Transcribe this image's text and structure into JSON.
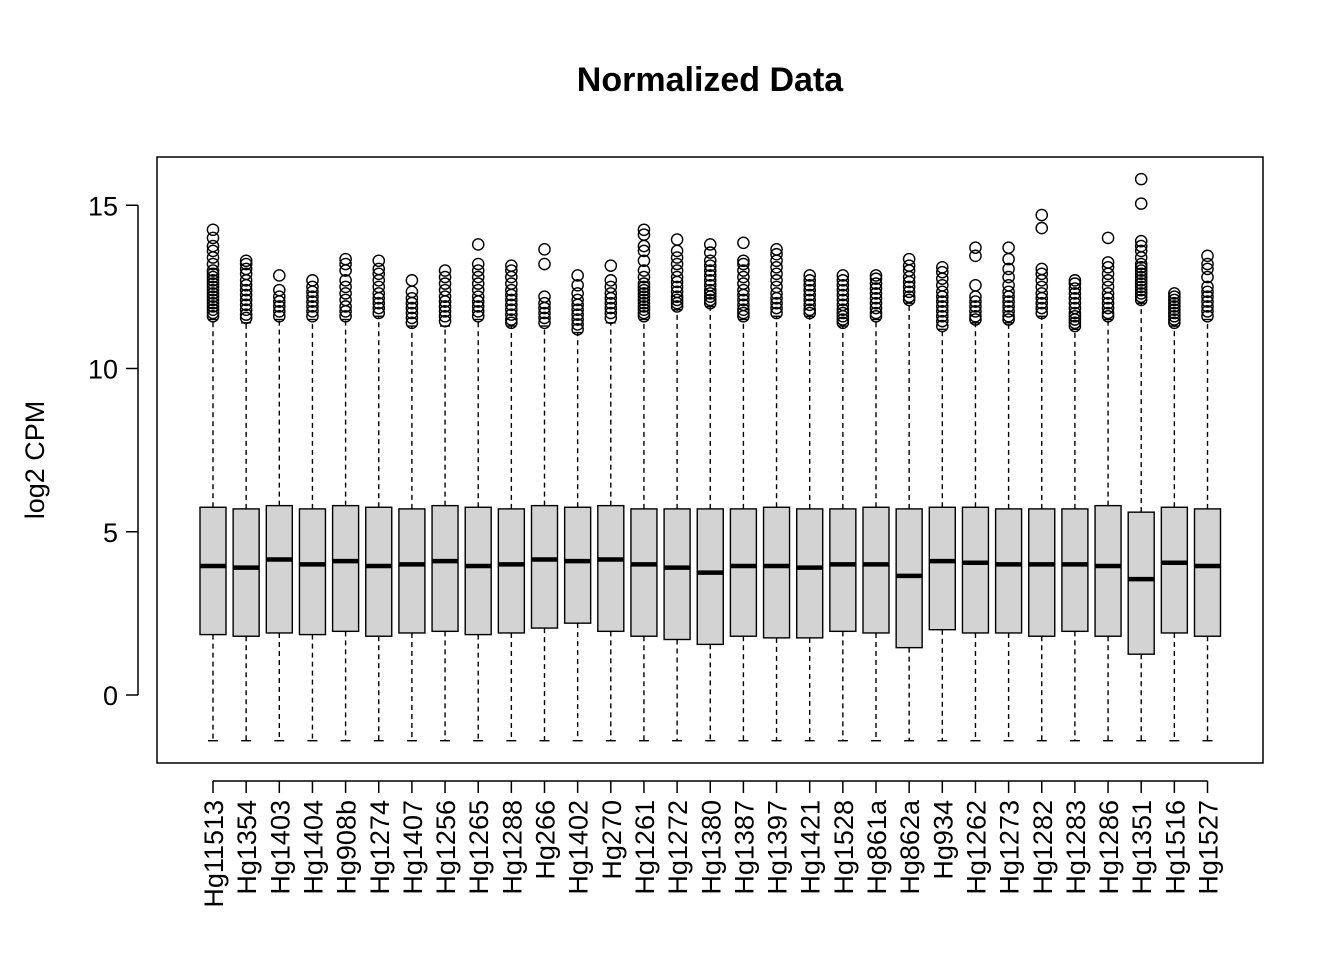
{
  "chart_data": {
    "type": "boxplot",
    "title": "Normalized Data",
    "xlabel": "",
    "ylabel": "log2 CPM",
    "ylim": [
      -2.0,
      16.5
    ],
    "yticks": [
      0,
      5,
      10,
      15
    ],
    "box_fill": "#d3d3d3",
    "line_color": "#000000",
    "background": "#ffffff",
    "grid": false,
    "legend": "none",
    "categories": [
      "Hg11513",
      "Hg1354",
      "Hg1403",
      "Hg1404",
      "Hg908b",
      "Hg1274",
      "Hg1407",
      "Hg1256",
      "Hg1265",
      "Hg1288",
      "Hg266",
      "Hg1402",
      "Hg270",
      "Hg1261",
      "Hg1272",
      "Hg1380",
      "Hg1387",
      "Hg1397",
      "Hg1421",
      "Hg1528",
      "Hg861a",
      "Hg862a",
      "Hg934",
      "Hg1262",
      "Hg1273",
      "Hg1282",
      "Hg1283",
      "Hg1286",
      "Hg1351",
      "Hg1516",
      "Hg1527"
    ],
    "boxes": [
      {
        "min": -1.4,
        "q1": 1.85,
        "median": 3.95,
        "q3": 5.75,
        "max": 11.5,
        "outliers": [
          11.6,
          11.7,
          11.8,
          11.9,
          12.0,
          12.1,
          12.2,
          12.3,
          12.4,
          12.5,
          12.6,
          12.7,
          12.8,
          12.9,
          13.0,
          13.2,
          13.4,
          13.6,
          13.75,
          14.0,
          14.25
        ]
      },
      {
        "min": -1.4,
        "q1": 1.8,
        "median": 3.9,
        "q3": 5.7,
        "max": 11.4,
        "outliers": [
          11.55,
          11.65,
          11.8,
          11.95,
          12.1,
          12.25,
          12.4,
          12.55,
          12.7,
          12.9,
          13.05,
          13.2,
          13.3
        ]
      },
      {
        "min": -1.4,
        "q1": 1.9,
        "median": 4.15,
        "q3": 5.8,
        "max": 11.5,
        "outliers": [
          11.6,
          11.75,
          11.9,
          12.05,
          12.2,
          12.4,
          12.85
        ]
      },
      {
        "min": -1.4,
        "q1": 1.85,
        "median": 4.0,
        "q3": 5.7,
        "max": 11.5,
        "outliers": [
          11.6,
          11.75,
          11.9,
          12.05,
          12.2,
          12.35,
          12.5,
          12.7
        ]
      },
      {
        "min": -1.4,
        "q1": 1.95,
        "median": 4.1,
        "q3": 5.8,
        "max": 11.5,
        "outliers": [
          11.6,
          11.75,
          11.9,
          12.1,
          12.3,
          12.5,
          12.7,
          13.0,
          13.2,
          13.35
        ]
      },
      {
        "min": -1.4,
        "q1": 1.8,
        "median": 3.95,
        "q3": 5.75,
        "max": 11.6,
        "outliers": [
          11.7,
          11.85,
          12.0,
          12.15,
          12.3,
          12.5,
          12.7,
          12.9,
          13.05,
          13.3
        ]
      },
      {
        "min": -1.4,
        "q1": 1.9,
        "median": 4.0,
        "q3": 5.7,
        "max": 11.3,
        "outliers": [
          11.4,
          11.55,
          11.7,
          11.85,
          12.0,
          12.15,
          12.35,
          12.7
        ]
      },
      {
        "min": -1.4,
        "q1": 1.95,
        "median": 4.1,
        "q3": 5.8,
        "max": 11.3,
        "outliers": [
          11.45,
          11.6,
          11.75,
          11.9,
          12.05,
          12.2,
          12.4,
          12.6,
          12.8,
          13.0
        ]
      },
      {
        "min": -1.4,
        "q1": 1.85,
        "median": 3.95,
        "q3": 5.75,
        "max": 11.5,
        "outliers": [
          11.6,
          11.75,
          11.9,
          12.05,
          12.2,
          12.4,
          12.6,
          12.8,
          13.0,
          13.2,
          13.8
        ]
      },
      {
        "min": -1.4,
        "q1": 1.9,
        "median": 4.0,
        "q3": 5.7,
        "max": 11.3,
        "outliers": [
          11.4,
          11.5,
          11.65,
          11.8,
          11.95,
          12.1,
          12.25,
          12.4,
          12.6,
          12.8,
          13.0,
          13.15
        ]
      },
      {
        "min": -1.4,
        "q1": 2.05,
        "median": 4.15,
        "q3": 5.8,
        "max": 11.3,
        "outliers": [
          11.4,
          11.55,
          11.7,
          11.85,
          12.0,
          12.2,
          13.2,
          13.65
        ]
      },
      {
        "min": -1.4,
        "q1": 2.2,
        "median": 4.1,
        "q3": 5.75,
        "max": 11.1,
        "outliers": [
          11.2,
          11.35,
          11.5,
          11.65,
          11.8,
          11.95,
          12.1,
          12.3,
          12.55,
          12.85
        ]
      },
      {
        "min": -1.4,
        "q1": 1.95,
        "median": 4.15,
        "q3": 5.8,
        "max": 11.4,
        "outliers": [
          11.55,
          11.7,
          11.85,
          12.0,
          12.15,
          12.3,
          12.5,
          12.7,
          13.15
        ]
      },
      {
        "min": -1.4,
        "q1": 1.8,
        "median": 4.0,
        "q3": 5.7,
        "max": 11.5,
        "outliers": [
          11.6,
          11.7,
          11.8,
          11.9,
          12.0,
          12.1,
          12.2,
          12.3,
          12.4,
          12.5,
          12.6,
          12.8,
          13.0,
          13.3,
          13.6,
          13.75,
          14.1,
          14.25
        ]
      },
      {
        "min": -1.4,
        "q1": 1.7,
        "median": 3.9,
        "q3": 5.7,
        "max": 11.8,
        "outliers": [
          11.9,
          12.0,
          12.1,
          12.2,
          12.35,
          12.5,
          12.65,
          12.8,
          13.0,
          13.2,
          13.4,
          13.6,
          13.95
        ]
      },
      {
        "min": -1.4,
        "q1": 1.55,
        "median": 3.75,
        "q3": 5.7,
        "max": 11.9,
        "outliers": [
          12.0,
          12.1,
          12.2,
          12.3,
          12.4,
          12.55,
          12.7,
          12.85,
          13.0,
          13.15,
          13.3,
          13.55,
          13.8
        ]
      },
      {
        "min": -1.4,
        "q1": 1.8,
        "median": 3.95,
        "q3": 5.7,
        "max": 11.5,
        "outliers": [
          11.6,
          11.7,
          11.8,
          11.95,
          12.1,
          12.25,
          12.4,
          12.6,
          12.8,
          13.0,
          13.2,
          13.3,
          13.85
        ]
      },
      {
        "min": -1.4,
        "q1": 1.75,
        "median": 3.95,
        "q3": 5.75,
        "max": 11.6,
        "outliers": [
          11.7,
          11.85,
          12.0,
          12.15,
          12.3,
          12.5,
          12.7,
          12.9,
          13.1,
          13.3,
          13.5,
          13.65
        ]
      },
      {
        "min": -1.4,
        "q1": 1.75,
        "median": 3.9,
        "q3": 5.7,
        "max": 11.6,
        "outliers": [
          11.7,
          11.8,
          11.95,
          12.1,
          12.25,
          12.4,
          12.55,
          12.7,
          12.85
        ]
      },
      {
        "min": -1.4,
        "q1": 1.95,
        "median": 4.0,
        "q3": 5.7,
        "max": 11.3,
        "outliers": [
          11.4,
          11.5,
          11.6,
          11.7,
          11.8,
          11.95,
          12.1,
          12.25,
          12.4,
          12.55,
          12.7,
          12.85
        ]
      },
      {
        "min": -1.4,
        "q1": 1.9,
        "median": 4.0,
        "q3": 5.75,
        "max": 11.5,
        "outliers": [
          11.6,
          11.7,
          11.85,
          12.0,
          12.15,
          12.3,
          12.45,
          12.6,
          12.75,
          12.85
        ]
      },
      {
        "min": -1.4,
        "q1": 1.45,
        "median": 3.65,
        "q3": 5.7,
        "max": 12.0,
        "outliers": [
          12.1,
          12.2,
          12.35,
          12.5,
          12.65,
          12.8,
          13.0,
          13.15,
          13.35
        ]
      },
      {
        "min": -1.4,
        "q1": 2.0,
        "median": 4.1,
        "q3": 5.75,
        "max": 11.2,
        "outliers": [
          11.3,
          11.45,
          11.6,
          11.75,
          11.9,
          12.05,
          12.2,
          12.35,
          12.55,
          12.75,
          12.95,
          13.1
        ]
      },
      {
        "min": -1.4,
        "q1": 1.9,
        "median": 4.05,
        "q3": 5.75,
        "max": 11.4,
        "outliers": [
          11.5,
          11.6,
          11.75,
          11.9,
          12.05,
          12.2,
          12.55,
          13.45,
          13.7
        ]
      },
      {
        "min": -1.4,
        "q1": 1.9,
        "median": 4.0,
        "q3": 5.7,
        "max": 11.4,
        "outliers": [
          11.5,
          11.6,
          11.75,
          11.9,
          12.05,
          12.2,
          12.35,
          12.55,
          12.8,
          13.05,
          13.35,
          13.7
        ]
      },
      {
        "min": -1.4,
        "q1": 1.8,
        "median": 4.0,
        "q3": 5.7,
        "max": 11.6,
        "outliers": [
          11.7,
          11.85,
          12.0,
          12.15,
          12.3,
          12.5,
          12.7,
          12.9,
          13.05,
          14.3,
          14.7
        ]
      },
      {
        "min": -1.4,
        "q1": 1.95,
        "median": 4.0,
        "q3": 5.7,
        "max": 11.2,
        "outliers": [
          11.3,
          11.4,
          11.5,
          11.6,
          11.7,
          11.85,
          12.0,
          12.15,
          12.3,
          12.45,
          12.6,
          12.7
        ]
      },
      {
        "min": -1.4,
        "q1": 1.8,
        "median": 3.95,
        "q3": 5.8,
        "max": 11.5,
        "outliers": [
          11.6,
          11.7,
          11.85,
          12.0,
          12.15,
          12.3,
          12.5,
          12.7,
          12.9,
          13.1,
          13.25,
          14.0
        ]
      },
      {
        "min": -1.4,
        "q1": 1.25,
        "median": 3.55,
        "q3": 5.6,
        "max": 12.0,
        "outliers": [
          12.1,
          12.2,
          12.3,
          12.4,
          12.5,
          12.6,
          12.7,
          12.8,
          12.9,
          13.0,
          13.1,
          13.2,
          13.4,
          13.6,
          13.75,
          13.9,
          15.05,
          15.8
        ]
      },
      {
        "min": -1.4,
        "q1": 1.9,
        "median": 4.05,
        "q3": 5.75,
        "max": 11.3,
        "outliers": [
          11.4,
          11.5,
          11.6,
          11.7,
          11.8,
          11.9,
          12.0,
          12.1,
          12.2,
          12.3
        ]
      },
      {
        "min": -1.4,
        "q1": 1.8,
        "median": 3.95,
        "q3": 5.7,
        "max": 11.5,
        "outliers": [
          11.6,
          11.75,
          11.9,
          12.05,
          12.2,
          12.35,
          12.5,
          12.8,
          13.05,
          13.2,
          13.45
        ]
      }
    ]
  }
}
